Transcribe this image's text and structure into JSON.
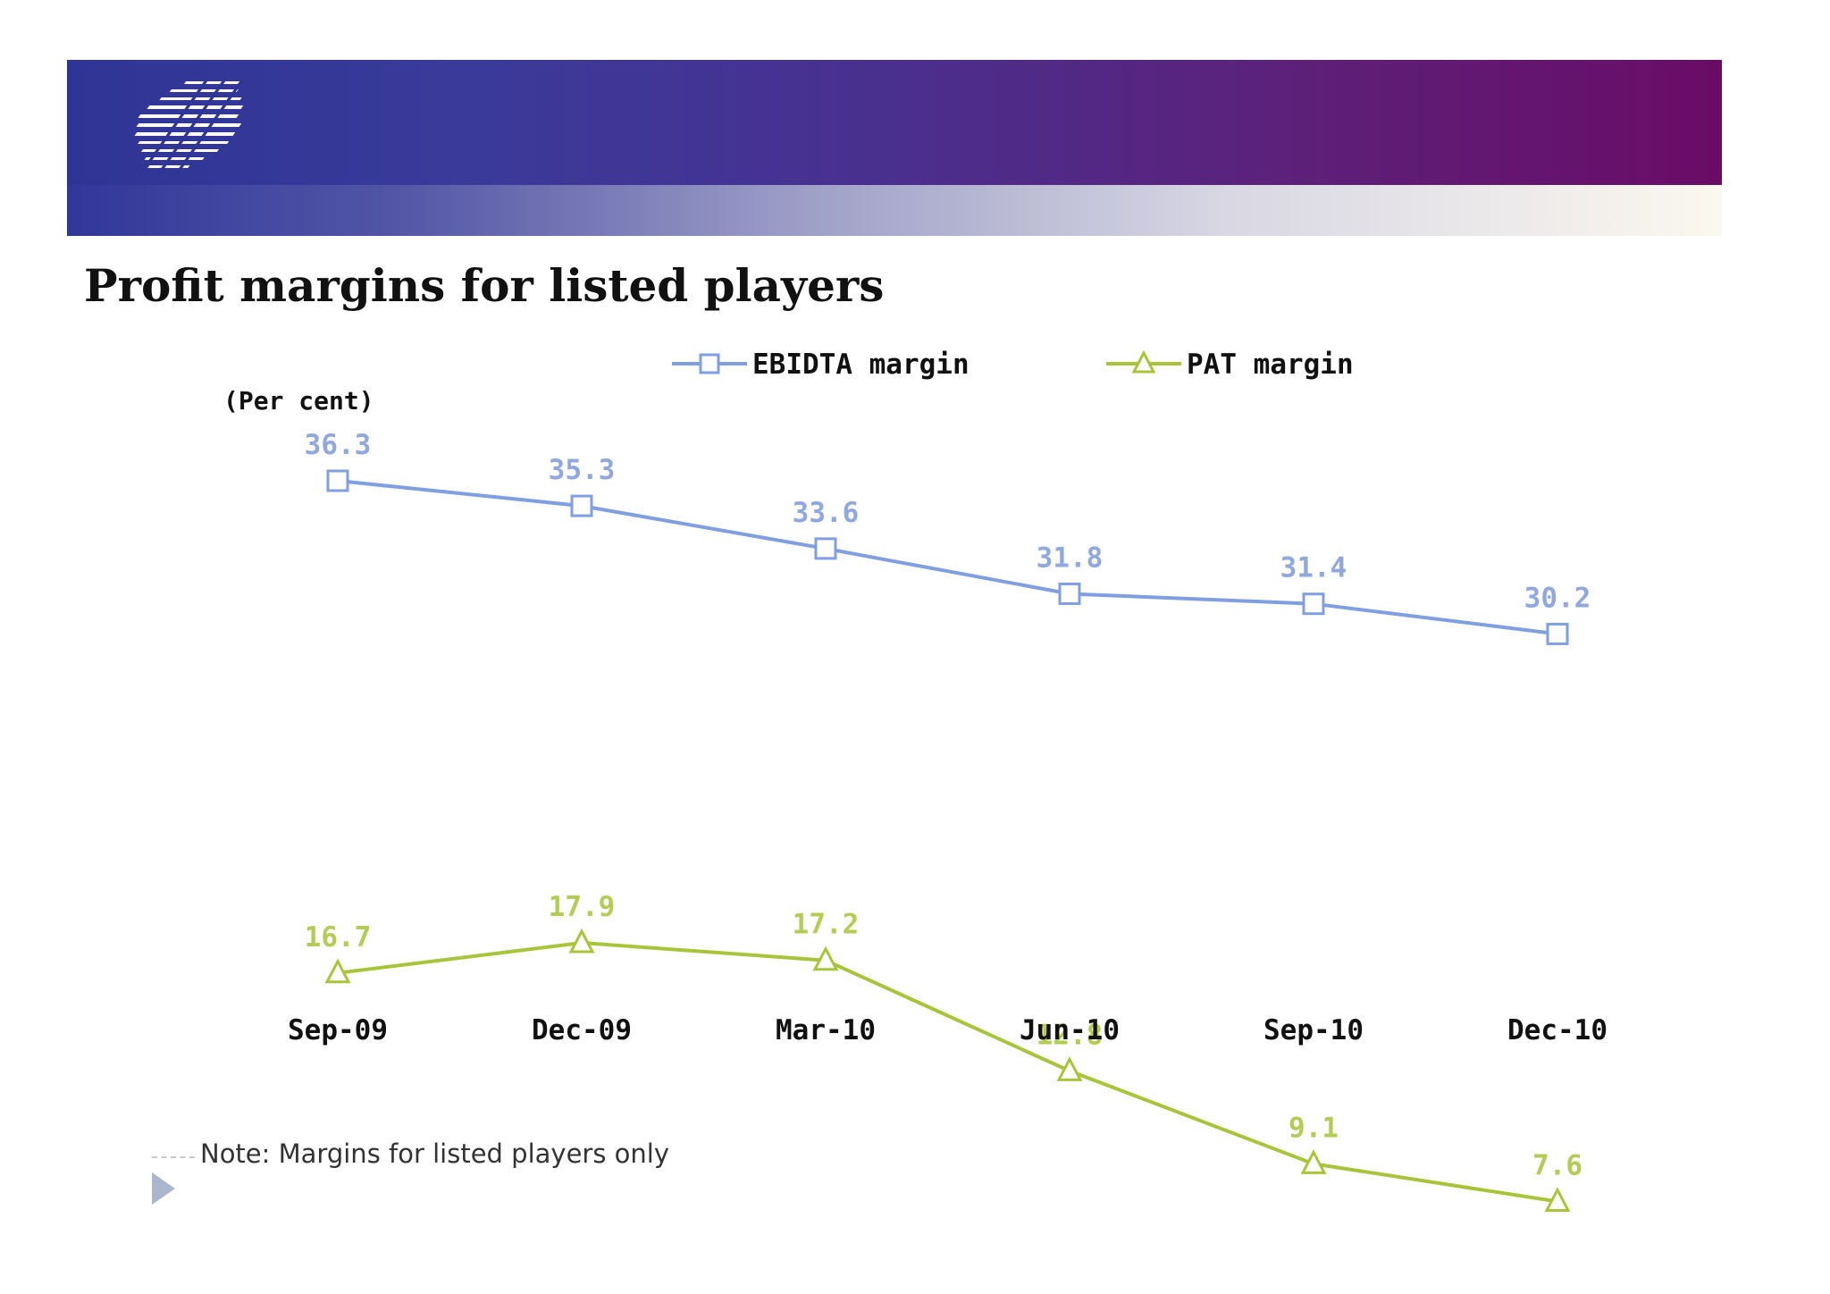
{
  "header": {
    "colors": {
      "banner_left": "#2f3596",
      "banner_right": "#6a0c66"
    },
    "logo_icon": "striped-logo-icon"
  },
  "title": "Profit margins for listed players",
  "note": "Note: Margins for listed players only",
  "chart_data": {
    "type": "line",
    "title": "Profit margins for listed players",
    "ylabel": "(Per cent)",
    "xlabel": "",
    "categories": [
      "Sep-09",
      "Dec-09",
      "Mar-10",
      "Jun-10",
      "Sep-10",
      "Dec-10"
    ],
    "ylim": [
      0,
      40
    ],
    "grid": false,
    "legend": "top-center",
    "series": [
      {
        "name": "EBIDTA margin",
        "values": [
          36.3,
          35.3,
          33.6,
          31.8,
          31.4,
          30.2
        ],
        "labels": [
          "36.3",
          "35.3",
          "33.6",
          "31.8",
          "31.4",
          "30.2"
        ],
        "color": "#7f9fe0",
        "marker": "square"
      },
      {
        "name": "PAT margin",
        "values": [
          16.7,
          17.9,
          17.2,
          12.8,
          9.1,
          7.6
        ],
        "labels": [
          "16.7",
          "17.9",
          "17.2",
          "12.8",
          "9.1",
          "7.6"
        ],
        "color": "#a8c43a",
        "marker": "triangle"
      }
    ]
  }
}
